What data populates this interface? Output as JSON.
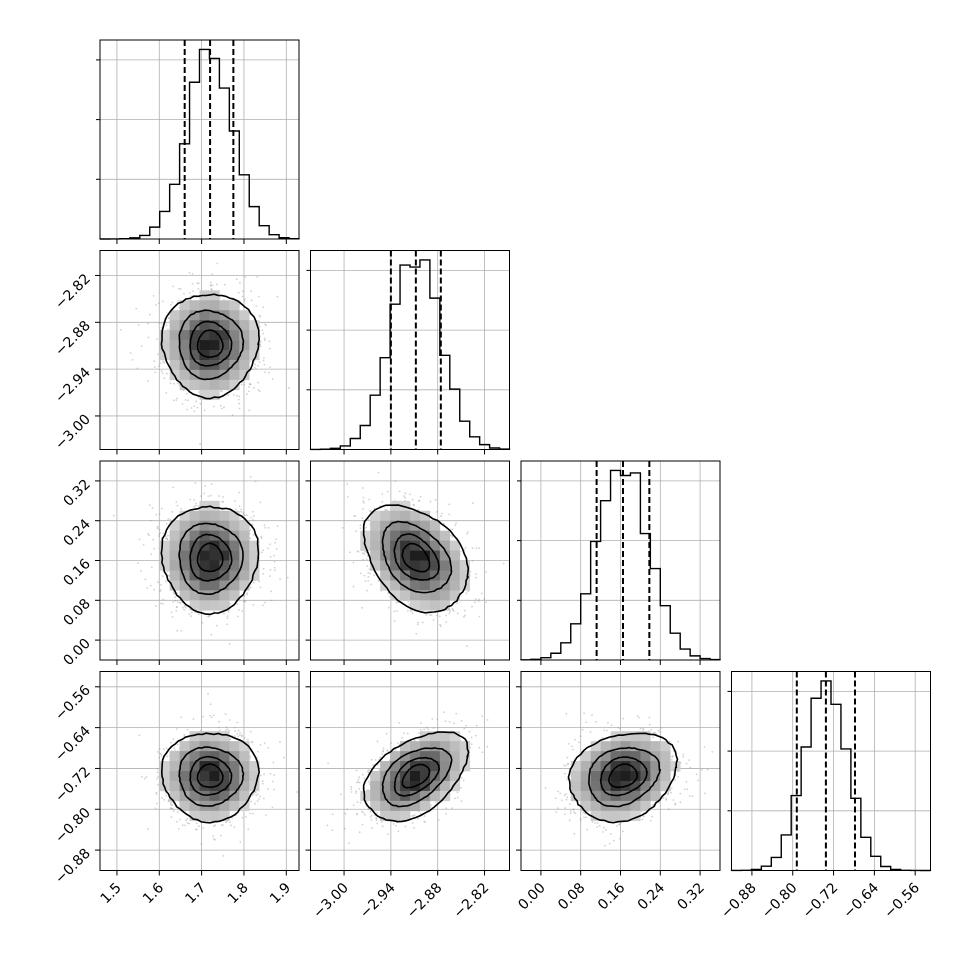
{
  "chart_data": {
    "type": "corner",
    "parameters": [
      {
        "mean": 1.72,
        "sigma": 0.055,
        "range": [
          1.46,
          1.93
        ],
        "ticks": [
          "1.5",
          "1.6",
          "1.7",
          "1.8",
          "1.9"
        ],
        "quantiles": [
          1.66,
          1.72,
          1.775
        ]
      },
      {
        "mean": -2.908,
        "sigma": 0.032,
        "range": [
          -3.043,
          -2.788
        ],
        "ticks": [
          "−3.00",
          "−2.94",
          "−2.88",
          "−2.82"
        ],
        "quantiles": [
          -2.94,
          -2.908,
          -2.876
        ]
      },
      {
        "mean": 0.165,
        "sigma": 0.052,
        "range": [
          -0.04,
          0.36
        ],
        "ticks": [
          "0.00",
          "0.08",
          "0.16",
          "0.24",
          "0.32"
        ],
        "quantiles": [
          0.112,
          0.165,
          0.218
        ]
      },
      {
        "mean": -0.735,
        "sigma": 0.042,
        "range": [
          -0.92,
          -0.53
        ],
        "ticks": [
          "−0.88",
          "−0.80",
          "−0.72",
          "−0.64",
          "−0.56"
        ],
        "quantiles": [
          -0.792,
          -0.735,
          -0.678
        ]
      }
    ],
    "correlations": {
      "1-0": 0.0,
      "2-0": 0.0,
      "2-1": -0.35,
      "3-0": 0.0,
      "3-1": 0.45,
      "3-2": 0.2
    },
    "histogram": {
      "bins": 20
    },
    "contour_levels_sigma": [
      0.5,
      1.0,
      1.5,
      2.0
    ],
    "grid": true
  }
}
